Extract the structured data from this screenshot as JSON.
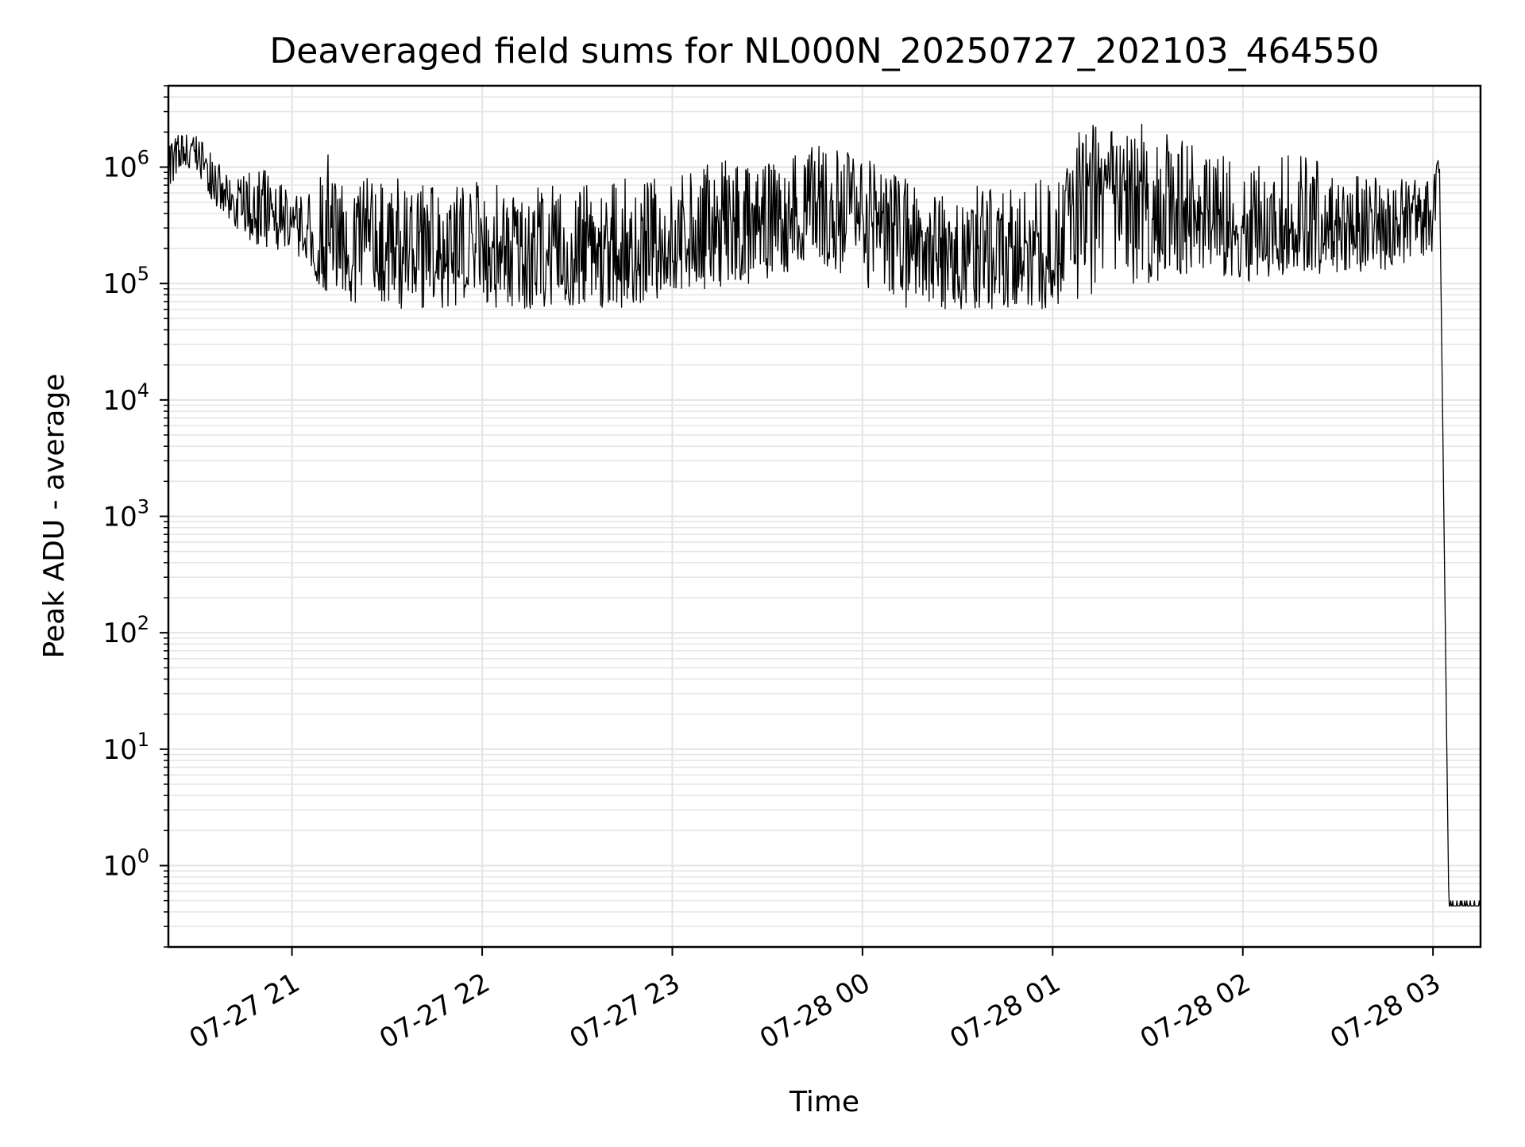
{
  "chart_data": {
    "type": "line",
    "title": "Deaveraged field sums for NL000N_20250727_202103_464550",
    "xlabel": "Time",
    "ylabel": "Peak ADU - average",
    "yscale": "log",
    "ylim": [
      0.2,
      5000000
    ],
    "xlim": [
      "07-27 20:21",
      "07-28 03:15"
    ],
    "grid": true,
    "legend": "none",
    "line_color": "#000000",
    "grid_color": "#e6e6e6",
    "x_tick_labels": [
      "07-27 21",
      "07-27 22",
      "07-27 23",
      "07-28 00",
      "07-28 01",
      "07-28 02",
      "07-28 03"
    ],
    "y_tick_labels": [
      {
        "base": "10",
        "exp": "0"
      },
      {
        "base": "10",
        "exp": "1"
      },
      {
        "base": "10",
        "exp": "2"
      },
      {
        "base": "10",
        "exp": "3"
      },
      {
        "base": "10",
        "exp": "4"
      },
      {
        "base": "10",
        "exp": "5"
      },
      {
        "base": "10",
        "exp": "6"
      }
    ],
    "series": [
      {
        "x": [
          "07-27 20:21",
          "07-27 20:30",
          "07-27 20:35",
          "07-27 20:40",
          "07-27 20:50",
          "07-27 21:00",
          "07-27 21:05",
          "07-27 21:08",
          "07-27 21:15",
          "07-27 21:30",
          "07-27 21:45",
          "07-27 22:00",
          "07-27 22:15",
          "07-27 22:30",
          "07-27 22:45",
          "07-27 23:00",
          "07-27 23:15",
          "07-27 23:30",
          "07-27 23:45",
          "07-28 00:00",
          "07-28 00:15",
          "07-28 00:30",
          "07-28 00:45",
          "07-28 01:00",
          "07-28 01:10",
          "07-28 01:20",
          "07-28 01:30",
          "07-28 01:45",
          "07-28 02:00",
          "07-28 02:15",
          "07-28 02:30",
          "07-28 02:45",
          "07-28 03:00",
          "07-28 03:02",
          "07-28 03:05",
          "07-28 03:15"
        ],
        "y_typical": [
          1300000,
          1300000,
          900000,
          500000,
          350000,
          300000,
          250000,
          120000,
          200000,
          200000,
          200000,
          200000,
          200000,
          180000,
          200000,
          200000,
          300000,
          300000,
          500000,
          500000,
          250000,
          200000,
          200000,
          200000,
          700000,
          600000,
          700000,
          400000,
          300000,
          300000,
          250000,
          300000,
          600000,
          1300000,
          0.45,
          0.45
        ],
        "y_high": [
          2000000,
          2000000,
          1300000,
          800000,
          1000000,
          700000,
          500000,
          2200000,
          900000,
          800000,
          800000,
          800000,
          700000,
          700000,
          800000,
          800000,
          1200000,
          1100000,
          1600000,
          1300000,
          800000,
          700000,
          700000,
          900000,
          2500000,
          2000000,
          2500000,
          1500000,
          1200000,
          1500000,
          900000,
          800000,
          800000,
          1300000,
          0.5,
          0.5
        ],
        "y_low": [
          600000,
          900000,
          500000,
          300000,
          200000,
          180000,
          150000,
          100000,
          60000,
          60000,
          60000,
          60000,
          60000,
          60000,
          60000,
          80000,
          90000,
          100000,
          150000,
          80000,
          60000,
          60000,
          60000,
          60000,
          70000,
          80000,
          100000,
          120000,
          100000,
          120000,
          120000,
          130000,
          180000,
          1000000,
          0.45,
          0.45
        ]
      }
    ]
  }
}
